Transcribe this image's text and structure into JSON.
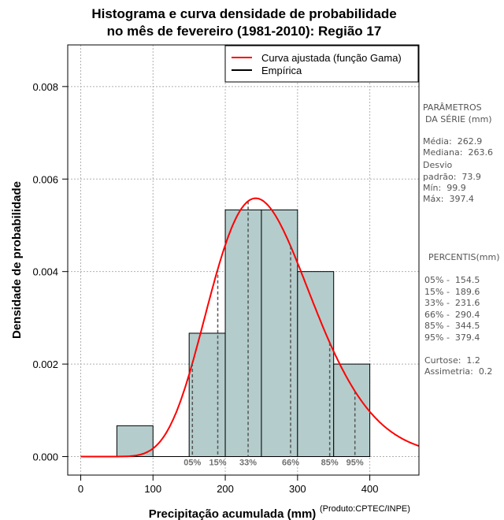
{
  "chart_data": {
    "type": "histogram",
    "title_line1": "Histograma e curva densidade de probabilidade",
    "title_line2": "no mês de fevereiro (1981-2010): Região 17",
    "xlabel": "Precipitação acumulada (mm)",
    "ylabel": "Densidade de probabilidade",
    "xlim": [
      -18,
      468
    ],
    "ylim": [
      -0.0004,
      0.0089
    ],
    "x_ticks": [
      "0",
      "100",
      "200",
      "300",
      "400"
    ],
    "x_tick_values": [
      0,
      100,
      200,
      300,
      400
    ],
    "y_ticks": [
      "0.000",
      "0.002",
      "0.004",
      "0.006",
      "0.008"
    ],
    "y_tick_values": [
      0,
      0.002,
      0.004,
      0.006,
      0.008
    ],
    "grid": true,
    "bins": [
      {
        "x0": 50,
        "x1": 100,
        "density": 0.000667
      },
      {
        "x0": 150,
        "x1": 200,
        "density": 0.002667
      },
      {
        "x0": 200,
        "x1": 250,
        "density": 0.005333
      },
      {
        "x0": 250,
        "x1": 300,
        "density": 0.005333
      },
      {
        "x0": 300,
        "x1": 350,
        "density": 0.004
      },
      {
        "x0": 350,
        "x1": 400,
        "density": 0.002
      }
    ],
    "gamma_fit": {
      "shape": 12.65,
      "scale": 20.78
    },
    "percentile_lines": [
      {
        "label": "05%",
        "value": 154.5
      },
      {
        "label": "15%",
        "value": 189.6
      },
      {
        "label": "33%",
        "value": 231.6
      },
      {
        "label": "66%",
        "value": 290.4
      },
      {
        "label": "85%",
        "value": 344.5
      },
      {
        "label": "95%",
        "value": 379.4
      }
    ],
    "legend": [
      {
        "label": "Curva ajustada (função Gama)",
        "color": "#ff0000"
      },
      {
        "label": "Empírica",
        "color": "#000000"
      }
    ],
    "legend_position": "top-right"
  },
  "colors": {
    "bar_fill": "#b4cccc",
    "curve": "#ff0000",
    "grid": "#b0b0b0",
    "percentile_label": "#707070"
  },
  "stats": {
    "heading_line1": "PARÂMETROS",
    "heading_line2": "DA SÉRIE (mm)",
    "media": "Média:  262.9",
    "mediana": "Mediana:  263.6",
    "desvio_line1": "Desvio",
    "desvio_line2": "padrão:  73.9",
    "min": "Mín:  99.9",
    "max": "Máx:  397.4"
  },
  "percentis": {
    "heading": "PERCENTIS(mm)",
    "p05": "05% -  154.5",
    "p15": "15% -  189.6",
    "p33": "33% -  231.6",
    "p66": "66% -  290.4",
    "p85": "85% -  344.5",
    "p95": "95% -  379.4"
  },
  "shape": {
    "curtose": "Curtose:  1.2",
    "assimetria": "Assimetria:  0.2"
  },
  "credit": "(Produto:CPTEC/INPE)"
}
